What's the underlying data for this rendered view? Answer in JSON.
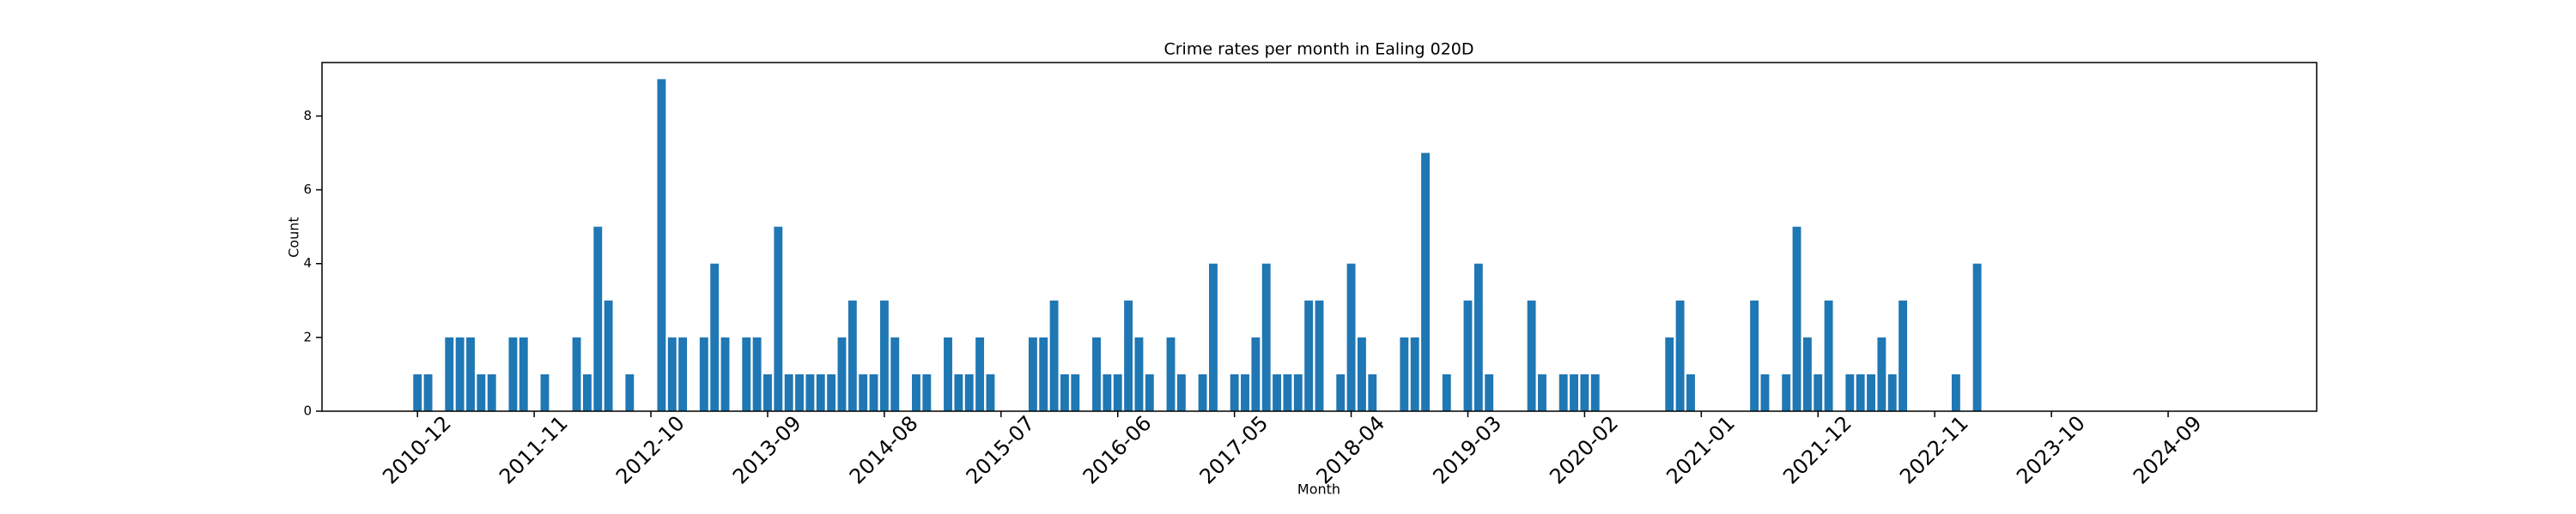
{
  "chart_data": {
    "type": "bar",
    "title": "Crime rates per month in Ealing 020D",
    "xlabel": "Month",
    "ylabel": "Count",
    "color": "#1f77b4",
    "x": [
      "2010-12",
      "2011-01",
      "2011-03",
      "2011-04",
      "2011-05",
      "2011-06",
      "2011-07",
      "2011-09",
      "2011-10",
      "2011-12",
      "2012-03",
      "2012-04",
      "2012-05",
      "2012-06",
      "2012-08",
      "2012-11",
      "2012-12",
      "2013-01",
      "2013-03",
      "2013-04",
      "2013-05",
      "2013-07",
      "2013-08",
      "2013-09",
      "2013-10",
      "2013-11",
      "2013-12",
      "2014-01",
      "2014-02",
      "2014-03",
      "2014-04",
      "2014-05",
      "2014-06",
      "2014-07",
      "2014-08",
      "2014-09",
      "2014-11",
      "2014-12",
      "2015-02",
      "2015-03",
      "2015-04",
      "2015-05",
      "2015-06",
      "2015-10",
      "2015-11",
      "2015-12",
      "2016-01",
      "2016-02",
      "2016-04",
      "2016-05",
      "2016-06",
      "2016-07",
      "2016-08",
      "2016-09",
      "2016-11",
      "2016-12",
      "2017-02",
      "2017-03",
      "2017-05",
      "2017-06",
      "2017-07",
      "2017-08",
      "2017-09",
      "2017-10",
      "2017-11",
      "2017-12",
      "2018-01",
      "2018-03",
      "2018-04",
      "2018-05",
      "2018-06",
      "2018-09",
      "2018-10",
      "2018-11",
      "2019-01",
      "2019-03",
      "2019-04",
      "2019-05",
      "2019-09",
      "2019-10",
      "2019-12",
      "2020-01",
      "2020-02",
      "2020-03",
      "2020-10",
      "2020-11",
      "2020-12",
      "2021-06",
      "2021-07",
      "2021-09",
      "2021-10",
      "2021-11",
      "2021-12",
      "2022-01",
      "2022-03",
      "2022-04",
      "2022-05",
      "2022-06",
      "2022-07",
      "2022-08",
      "2023-01",
      "2023-03"
    ],
    "values": [
      1,
      1,
      2,
      2,
      2,
      1,
      1,
      2,
      2,
      1,
      2,
      1,
      5,
      3,
      1,
      9,
      2,
      2,
      2,
      4,
      2,
      2,
      2,
      1,
      5,
      1,
      1,
      1,
      1,
      1,
      2,
      3,
      1,
      1,
      3,
      2,
      1,
      1,
      2,
      1,
      1,
      2,
      1,
      2,
      2,
      3,
      1,
      1,
      2,
      1,
      1,
      3,
      2,
      1,
      2,
      1,
      1,
      4,
      1,
      1,
      2,
      4,
      1,
      1,
      1,
      3,
      3,
      1,
      4,
      2,
      1,
      2,
      2,
      7,
      1,
      3,
      4,
      1,
      3,
      1,
      1,
      1,
      1,
      1,
      2,
      3,
      1,
      3,
      1,
      1,
      5,
      2,
      1,
      3,
      1,
      1,
      1,
      2,
      1,
      3,
      1,
      4
    ],
    "xlim": [
      "2010-03",
      "2025-11"
    ],
    "xticks": [
      "2010-12",
      "2011-11",
      "2012-10",
      "2013-09",
      "2014-08",
      "2015-07",
      "2016-06",
      "2017-05",
      "2018-04",
      "2019-03",
      "2020-02",
      "2021-01",
      "2021-12",
      "2022-11",
      "2023-10",
      "2024-09"
    ],
    "ylim": [
      0,
      9.45
    ],
    "yticks": [
      0,
      2,
      4,
      6,
      8
    ]
  }
}
